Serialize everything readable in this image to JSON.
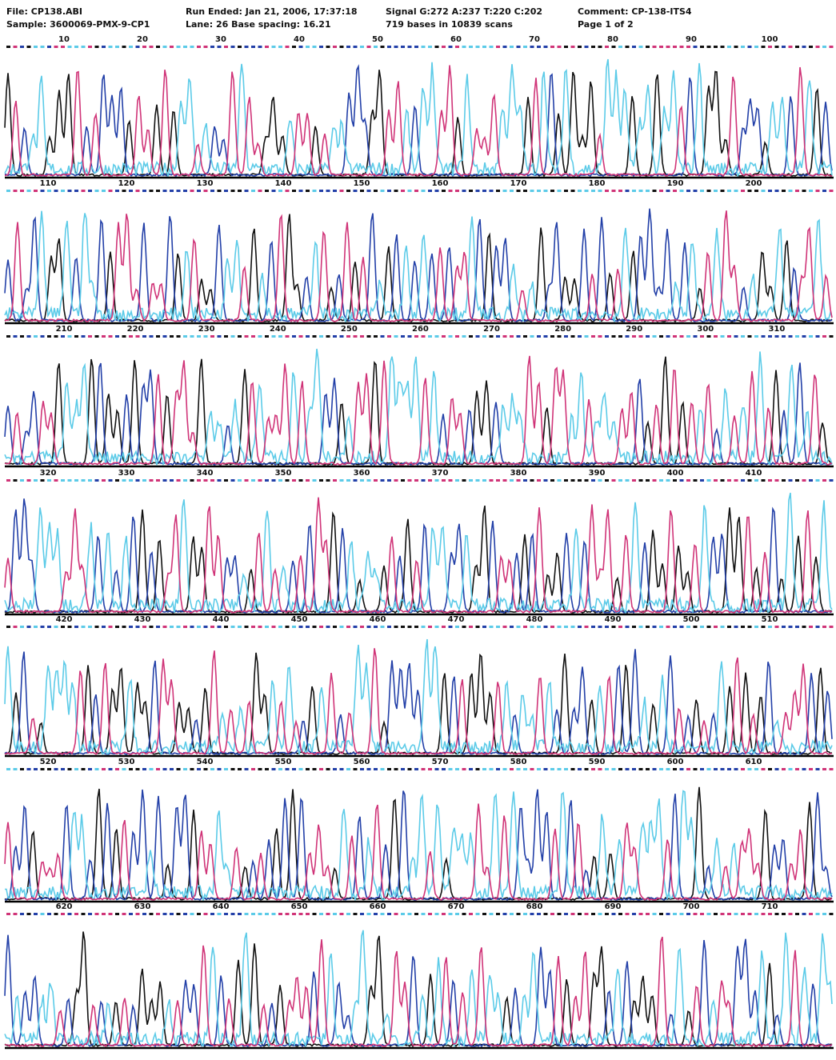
{
  "header": {
    "file": "File: CP138.ABI",
    "sample": "Sample: 3600069-PMX-9-CP1",
    "run_ended": "Run Ended: Jan 21, 2006, 17:37:18",
    "lane": "Lane: 26  Base spacing: 16.21",
    "signal": "Signal G:272 A:237 T:220 C:202",
    "bases": "719 bases in 10839 scans",
    "comment": "Comment: CP-138-ITS4",
    "page": "Page 1 of 2"
  },
  "rows": [
    {
      "positions": [
        10,
        20,
        30,
        40,
        50,
        60,
        70,
        80,
        90,
        100
      ]
    },
    {
      "positions": [
        110,
        120,
        130,
        140,
        150,
        160,
        170,
        180,
        190,
        200
      ]
    },
    {
      "positions": [
        210,
        220,
        230,
        240,
        250,
        260,
        270,
        280,
        290,
        300,
        310
      ]
    },
    {
      "positions": [
        320,
        330,
        340,
        350,
        360,
        370,
        380,
        390,
        400,
        410
      ]
    },
    {
      "positions": [
        420,
        430,
        440,
        450,
        460,
        470,
        480,
        490,
        500,
        510
      ]
    },
    {
      "positions": [
        520,
        530,
        540,
        550,
        560,
        570,
        580,
        590,
        600,
        610
      ]
    },
    {
      "positions": [
        620,
        630,
        640,
        650,
        660,
        670,
        680,
        690,
        700,
        710
      ]
    }
  ]
}
